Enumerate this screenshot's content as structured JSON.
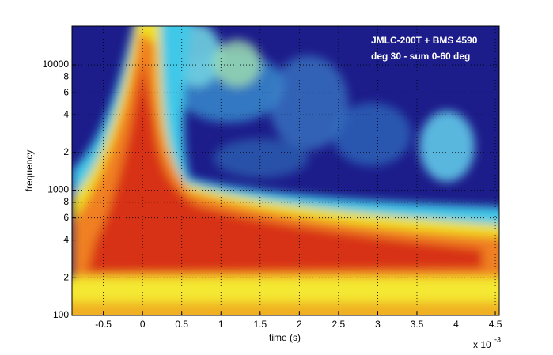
{
  "chart_data": {
    "type": "heatmap",
    "annotation": [
      "JMLC-200T + BMS 4590",
      "deg 30 - sum 0-60 deg"
    ],
    "xlabel": "time (s)",
    "ylabel": "frequency",
    "x_multiplier": {
      "base": "x 10",
      "exponent": "-3"
    },
    "xlim": [
      -0.9,
      4.55
    ],
    "ylim": [
      100,
      20400
    ],
    "ylog": true,
    "grid": true,
    "xticks": [
      -0.5,
      0,
      0.5,
      1,
      1.5,
      2,
      2.5,
      3,
      3.5,
      4,
      4.5
    ],
    "yticks": [
      100,
      {
        "value": 200,
        "label": "2"
      },
      {
        "value": 400,
        "label": "4"
      },
      {
        "value": 600,
        "label": "6"
      },
      {
        "value": 800,
        "label": "8"
      },
      1000,
      {
        "value": 2000,
        "label": "2"
      },
      {
        "value": 4000,
        "label": "4"
      },
      {
        "value": 6000,
        "label": "6"
      },
      {
        "value": 8000,
        "label": "8"
      },
      10000
    ]
  }
}
